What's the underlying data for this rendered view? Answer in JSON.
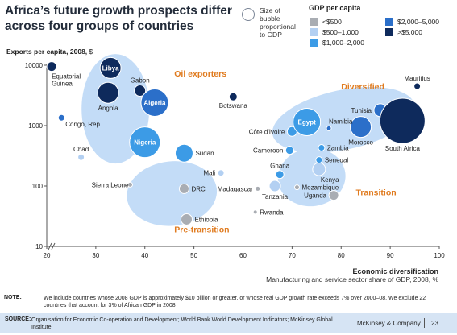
{
  "header": {
    "title_line1": "Africa’s future growth prospects differ",
    "title_line2": "across four groups of countries"
  },
  "size_key": {
    "line1": "Size of",
    "line2": "bubble",
    "line3": "proportional",
    "line4": "to GDP"
  },
  "gdp_legend": {
    "title": "GDP per capita",
    "items": [
      {
        "label": "<$500",
        "color": "#a9adb3"
      },
      {
        "label": "$500–1,000",
        "color": "#b3d0f2"
      },
      {
        "label": "$1,000–2,000",
        "color": "#3c9be6"
      },
      {
        "label": "$2,000–5,000",
        "color": "#2b6fc9"
      },
      {
        "label": ">$5,000",
        "color": "#0e2a5c"
      }
    ]
  },
  "colors": {
    "lt500": "#a9adb3",
    "g500_1000": "#b3d0f2",
    "g1000_2000": "#3c9be6",
    "g2000_5000": "#2b6fc9",
    "gt5000": "#0e2a5c",
    "cluster_fill": "#c3dcf7",
    "group_label": "#e07b1f"
  },
  "y_axis": {
    "label_bold": "Exports per capita, 2008,",
    "label_unit": " $"
  },
  "x_axis": {
    "title": "Economic diversification",
    "subtitle": "Manufacturing and service sector share of GDP, 2008, %"
  },
  "chart_data": {
    "type": "scatter",
    "x_range": [
      20,
      100
    ],
    "y_range": [
      10,
      10000
    ],
    "y_scale": "log",
    "x_ticks": [
      20,
      30,
      40,
      50,
      60,
      70,
      80,
      90,
      100
    ],
    "y_ticks": [
      {
        "value": 10,
        "label": "10"
      },
      {
        "value": 100,
        "label": "100"
      },
      {
        "value": 1000,
        "label": "1000"
      },
      {
        "value": 10000,
        "label": "10000"
      }
    ],
    "groups": [
      {
        "name": "Oil exporters",
        "label_x": 46,
        "label_y": 6500
      },
      {
        "name": "Diversified",
        "label_x": 80,
        "label_y": 4000
      },
      {
        "name": "Transition",
        "label_x": 83,
        "label_y": 70
      },
      {
        "name": "Pre-transition",
        "label_x": 46,
        "label_y": 17
      }
    ],
    "points": [
      {
        "name": "Libya",
        "x": 33,
        "y": 9000,
        "r": 13,
        "class": "gt5000",
        "label_pos": "inside"
      },
      {
        "name": "Equatorial Guinea",
        "x": 21,
        "y": 9500,
        "r": 6,
        "class": "gt5000",
        "label_pos": "below"
      },
      {
        "name": "Gabon",
        "x": 39,
        "y": 3800,
        "r": 7,
        "class": "gt5000",
        "label_pos": "above"
      },
      {
        "name": "Algeria",
        "x": 42,
        "y": 2400,
        "r": 17,
        "class": "g2000_5000",
        "label_pos": "inside"
      },
      {
        "name": "Angola",
        "x": 32.5,
        "y": 3500,
        "r": 13,
        "class": "gt5000",
        "label_pos": "below"
      },
      {
        "name": "Congo, Rep.",
        "x": 23,
        "y": 1350,
        "r": 4,
        "class": "g2000_5000",
        "label_pos": "right-below"
      },
      {
        "name": "Chad",
        "x": 27,
        "y": 300,
        "r": 4,
        "class": "g500_1000",
        "label_pos": "above"
      },
      {
        "name": "Nigeria",
        "x": 40,
        "y": 530,
        "r": 19,
        "class": "g1000_2000",
        "label_pos": "inside"
      },
      {
        "name": "Sudan",
        "x": 48,
        "y": 350,
        "r": 11,
        "class": "g1000_2000",
        "label_pos": "right"
      },
      {
        "name": "Botswana",
        "x": 58,
        "y": 3000,
        "r": 5,
        "class": "gt5000",
        "label_pos": "below"
      },
      {
        "name": "Mali",
        "x": 55.5,
        "y": 165,
        "r": 4,
        "class": "g500_1000",
        "label_pos": "left"
      },
      {
        "name": "Sierra Leone",
        "x": 37,
        "y": 105,
        "r": 3,
        "class": "lt500",
        "label_pos": "center"
      },
      {
        "name": "DRC",
        "x": 48,
        "y": 90,
        "r": 6,
        "class": "lt500",
        "label_pos": "right"
      },
      {
        "name": "Ethiopia",
        "x": 48.5,
        "y": 28,
        "r": 7,
        "class": "lt500",
        "label_pos": "right"
      },
      {
        "name": "Madagascar",
        "x": 63,
        "y": 90,
        "r": 3,
        "class": "lt500",
        "label_pos": "left"
      },
      {
        "name": "Rwanda",
        "x": 62.5,
        "y": 37,
        "r": 2.5,
        "class": "lt500",
        "label_pos": "right"
      },
      {
        "name": "Ghana",
        "x": 67.5,
        "y": 155,
        "r": 5,
        "class": "g1000_2000",
        "label_pos": "above"
      },
      {
        "name": "Tanzania",
        "x": 66.5,
        "y": 100,
        "r": 7,
        "class": "g500_1000",
        "label_pos": "below"
      },
      {
        "name": "Mozambique",
        "x": 71,
        "y": 95,
        "r": 3,
        "class": "lt500",
        "label_pos": "right"
      },
      {
        "name": "Uganda",
        "x": 78.5,
        "y": 70,
        "r": 6,
        "class": "lt500",
        "label_pos": "left"
      },
      {
        "name": "Kenya",
        "x": 75.5,
        "y": 190,
        "r": 8,
        "class": "g500_1000",
        "label_pos": "below-right"
      },
      {
        "name": "Senegal",
        "x": 75.5,
        "y": 270,
        "r": 4,
        "class": "g1000_2000",
        "label_pos": "right"
      },
      {
        "name": "Cameroon",
        "x": 69.5,
        "y": 390,
        "r": 5,
        "class": "g1000_2000",
        "label_pos": "left"
      },
      {
        "name": "Côte d'Ivoire",
        "x": 70,
        "y": 800,
        "r": 6,
        "class": "g1000_2000",
        "label_pos": "left"
      },
      {
        "name": "Egypt",
        "x": 73,
        "y": 1150,
        "r": 17,
        "class": "g1000_2000",
        "label_pos": "inside"
      },
      {
        "name": "Namibia",
        "x": 77.5,
        "y": 900,
        "r": 3,
        "class": "g2000_5000",
        "label_pos": "above-right"
      },
      {
        "name": "Zambia",
        "x": 76,
        "y": 430,
        "r": 4,
        "class": "g1000_2000",
        "label_pos": "right"
      },
      {
        "name": "Tunisia",
        "x": 88,
        "y": 1800,
        "r": 8,
        "class": "g2000_5000",
        "label_pos": "left"
      },
      {
        "name": "Morocco",
        "x": 84,
        "y": 950,
        "r": 13,
        "class": "g2000_5000",
        "label_pos": "below"
      },
      {
        "name": "South Africa",
        "x": 92.5,
        "y": 1200,
        "r": 28,
        "class": "gt5000",
        "label_pos": "below"
      },
      {
        "name": "Mauritius",
        "x": 95.5,
        "y": 4500,
        "r": 4,
        "class": "gt5000",
        "label_pos": "above"
      }
    ]
  },
  "notes": {
    "label": "NOTE:",
    "text": "We include countries whose 2008 GDP is approximately $10 billion or greater, or whose real GDP growth rate exceeds 7% over 2000–08. We exclude 22 countries that account for 3% of African GDP in 2008"
  },
  "footer": {
    "source_label": "SOURCE:",
    "source_text": "Organisation for Economic Co-operation and Development; World Bank World Development Indicators; McKinsey Global Institute",
    "brand": "McKinsey & Company",
    "page": "23"
  }
}
